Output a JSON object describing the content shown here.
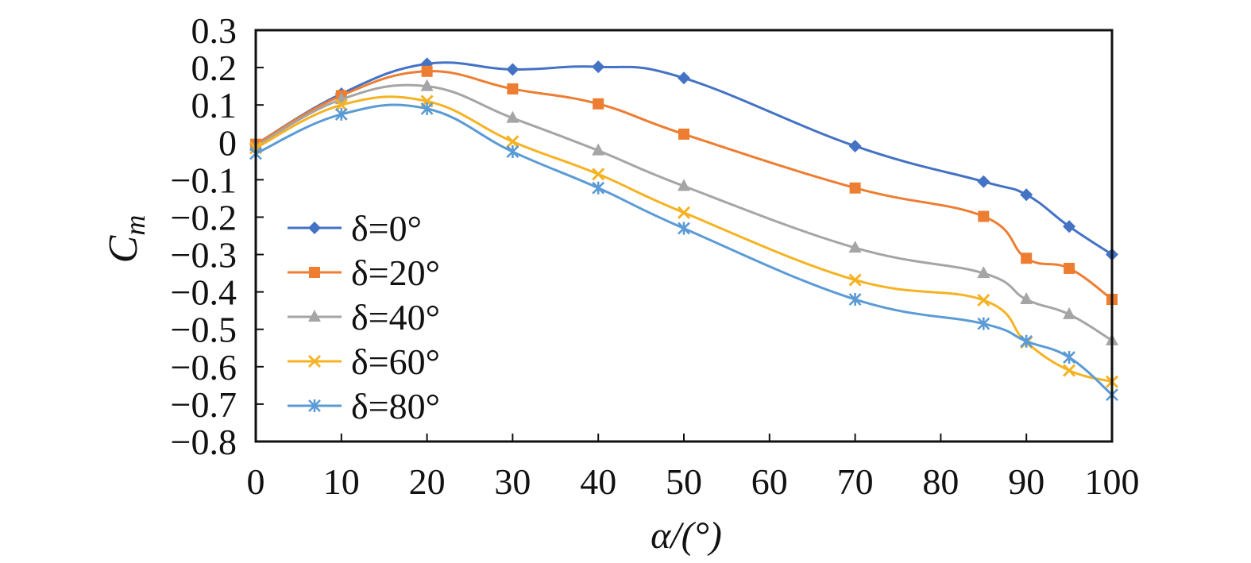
{
  "chart_data": {
    "type": "line",
    "xlabel": "α/(°)",
    "ylabel": {
      "main": "C",
      "sub": "m"
    },
    "x_ticks": [
      "0",
      "10",
      "20",
      "30",
      "40",
      "50",
      "60",
      "70",
      "80",
      "90",
      "100"
    ],
    "y_ticks": [
      "0.3",
      "0.2",
      "0.1",
      "0",
      "−0.1",
      "−0.2",
      "−0.3",
      "−0.4",
      "−0.5",
      "−0.6",
      "−0.7",
      "−0.8"
    ],
    "xlim": [
      0,
      100
    ],
    "ylim": [
      -0.8,
      0.3
    ],
    "grid": false,
    "legend_position": "left",
    "x": [
      0,
      10,
      20,
      30,
      40,
      50,
      70,
      85,
      90,
      95,
      100
    ],
    "series": [
      {
        "name": "δ=0°",
        "color": "#4472C4",
        "marker": "diamond",
        "values": [
          -0.005,
          0.13,
          0.21,
          0.195,
          0.202,
          0.172,
          -0.01,
          -0.105,
          -0.14,
          -0.225,
          -0.3
        ]
      },
      {
        "name": "δ=20°",
        "color": "#ED7D31",
        "marker": "square",
        "values": [
          -0.005,
          0.125,
          0.19,
          0.143,
          0.103,
          0.022,
          -0.122,
          -0.198,
          -0.31,
          -0.337,
          -0.42
        ]
      },
      {
        "name": "δ=40°",
        "color": "#A5A5A5",
        "marker": "triangle",
        "values": [
          -0.01,
          0.115,
          0.15,
          0.065,
          -0.022,
          -0.117,
          -0.282,
          -0.35,
          -0.42,
          -0.46,
          -0.53
        ]
      },
      {
        "name": "δ=60°",
        "color": "#F5B324",
        "marker": "x",
        "values": [
          -0.015,
          0.1,
          0.11,
          0.002,
          -0.085,
          -0.188,
          -0.368,
          -0.422,
          -0.535,
          -0.61,
          -0.64
        ]
      },
      {
        "name": "δ=80°",
        "color": "#5B9BD5",
        "marker": "asterisk",
        "values": [
          -0.03,
          0.075,
          0.09,
          -0.025,
          -0.122,
          -0.23,
          -0.42,
          -0.485,
          -0.532,
          -0.575,
          -0.675
        ]
      }
    ]
  }
}
